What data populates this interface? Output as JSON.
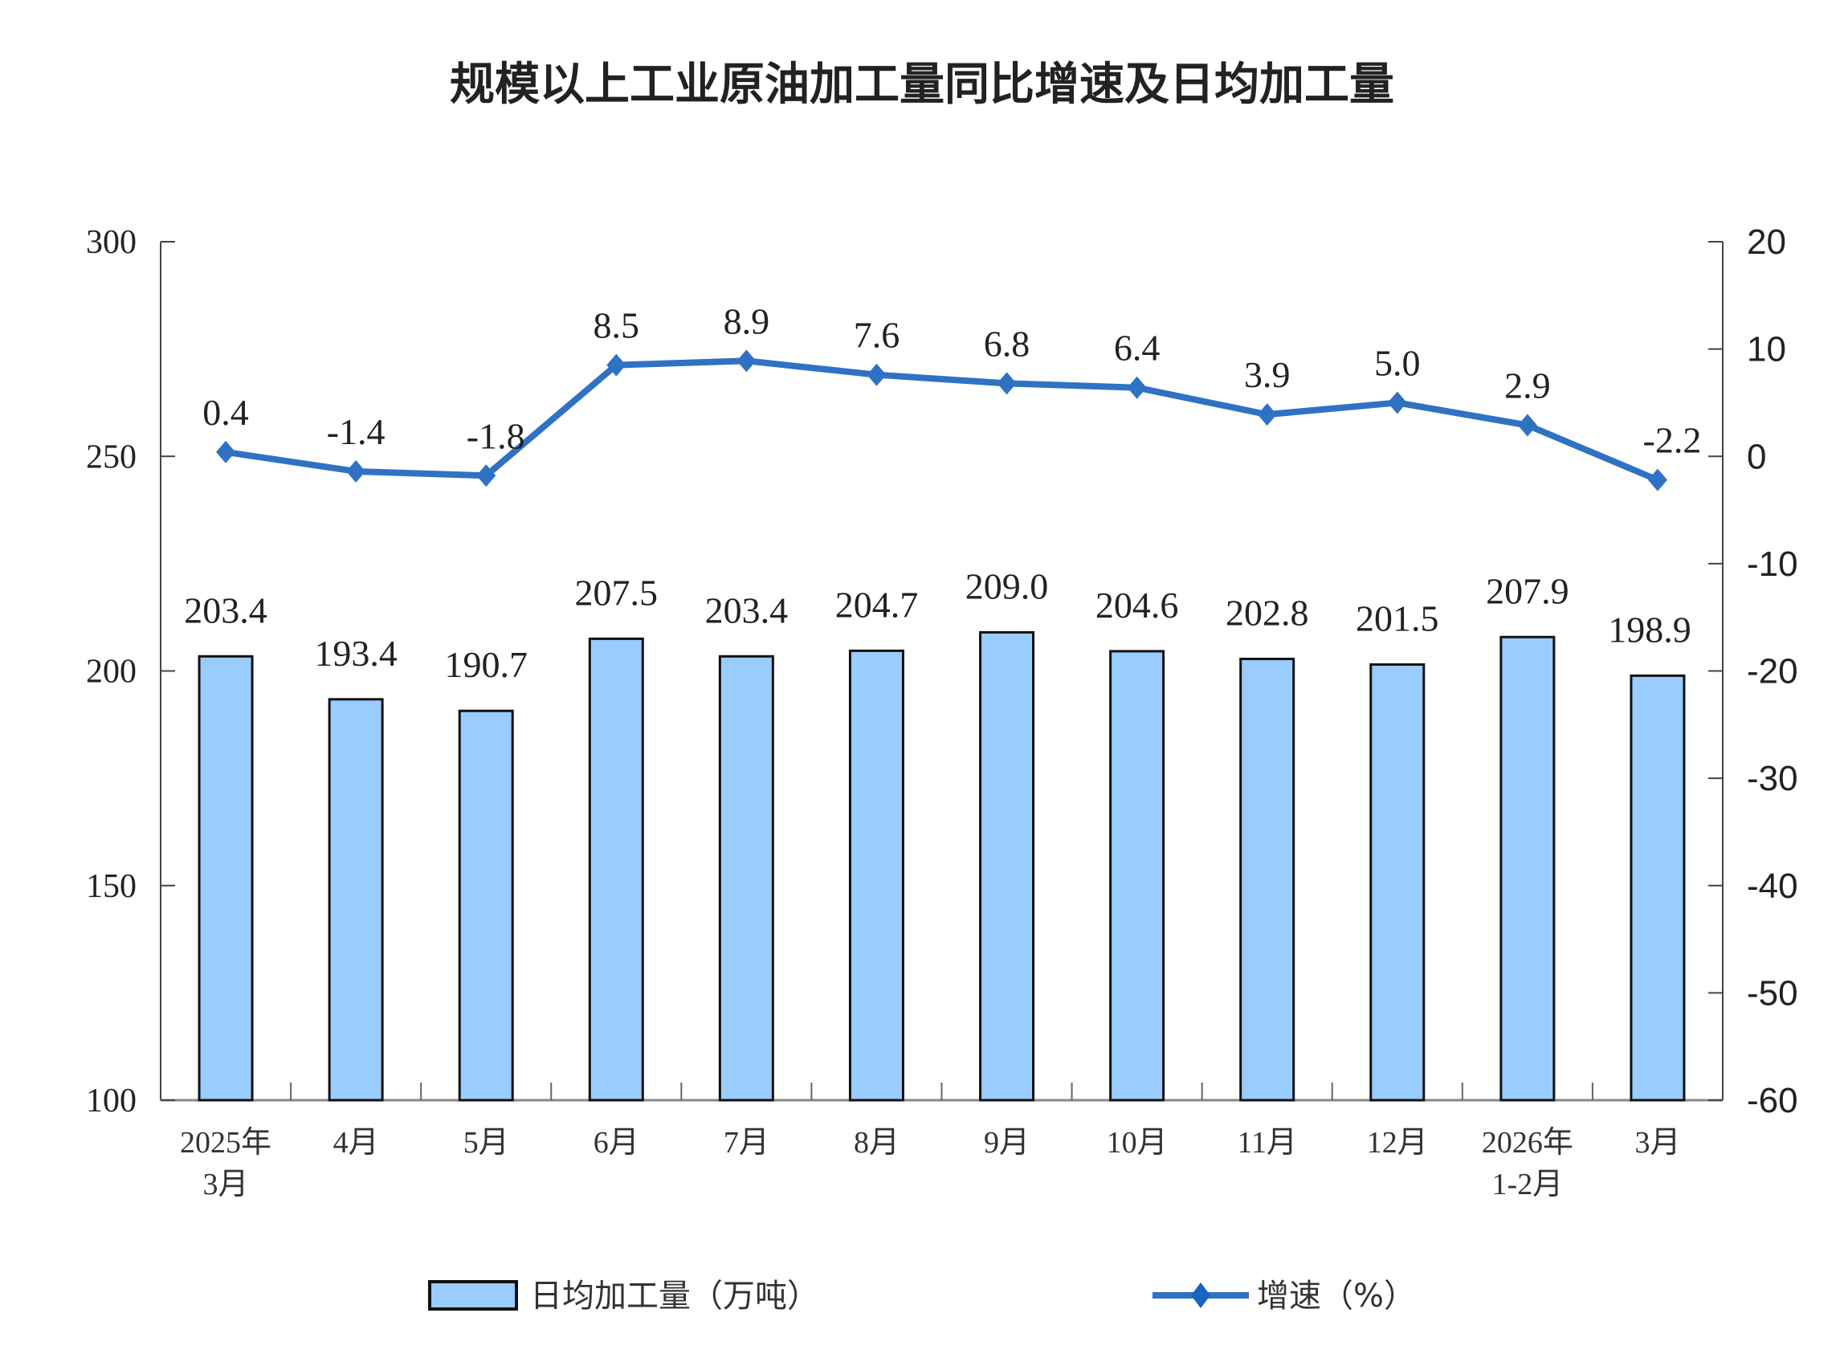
{
  "chart_data": {
    "type": "bar+line",
    "title": "规模以上工业原油加工量同比增速及日均加工量",
    "categories": [
      [
        "2025年",
        "3月"
      ],
      [
        "4月"
      ],
      [
        "5月"
      ],
      [
        "6月"
      ],
      [
        "7月"
      ],
      [
        "8月"
      ],
      [
        "9月"
      ],
      [
        "10月"
      ],
      [
        "11月"
      ],
      [
        "12月"
      ],
      [
        "2026年",
        "1-2月"
      ],
      [
        "3月"
      ]
    ],
    "series": [
      {
        "name": "日均加工量（万吨）",
        "type": "bar",
        "axis": "left",
        "color": "#99CCFF",
        "values": [
          203.4,
          193.4,
          190.7,
          207.5,
          203.4,
          204.7,
          209.0,
          204.6,
          202.8,
          201.5,
          207.9,
          198.9
        ],
        "labels": [
          "203.4",
          "193.4",
          "190.7",
          "207.5",
          "203.4",
          "204.7",
          "209.0",
          "204.6",
          "202.8",
          "201.5",
          "207.9",
          "198.9"
        ]
      },
      {
        "name": "增速（%）",
        "type": "line",
        "axis": "right",
        "color": "#2F72C4",
        "marker": "diamond",
        "values": [
          0.4,
          -1.4,
          -1.8,
          8.5,
          8.9,
          7.6,
          6.8,
          6.4,
          3.9,
          5.0,
          2.9,
          -2.2
        ],
        "labels": [
          "0.4",
          "-1.4",
          "-1.8",
          "8.5",
          "8.9",
          "7.6",
          "6.8",
          "6.4",
          "3.9",
          "5.0",
          "2.9",
          "-2.2"
        ]
      }
    ],
    "left_axis": {
      "ylim": [
        100,
        300
      ],
      "ticks": [
        "100",
        "150",
        "200",
        "250",
        "300"
      ]
    },
    "right_axis": {
      "ylim": [
        -60,
        20
      ],
      "ticks": [
        "-60",
        "-50",
        "-40",
        "-30",
        "-20",
        "-10",
        "0",
        "10",
        "20"
      ]
    },
    "grid": false,
    "legend": "bottom"
  }
}
